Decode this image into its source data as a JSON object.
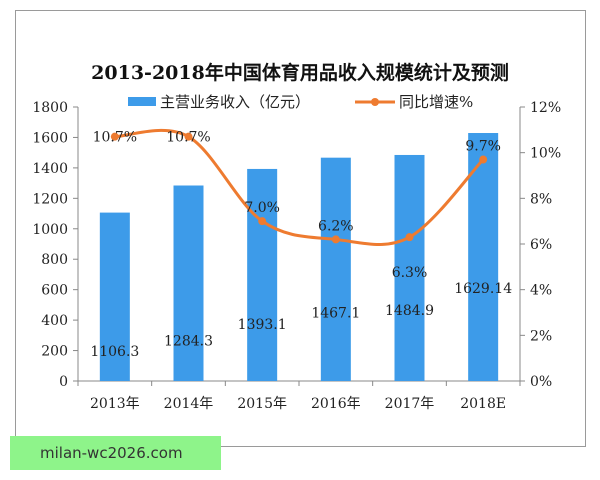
{
  "watermark": "milan-wc2026.com",
  "chart_data": {
    "type": "bar",
    "title": "2013-2018年中国体育用品收入规模统计及预测",
    "categories": [
      "2013年",
      "2014年",
      "2015年",
      "2016年",
      "2017年",
      "2018E"
    ],
    "series": [
      {
        "name": "主营业务收入（亿元）",
        "type": "bar",
        "axis": "left",
        "color": "#3d9be9",
        "values": [
          1106.3,
          1284.3,
          1393.1,
          1467.1,
          1484.9,
          1629.14
        ],
        "labels": [
          "1106.3",
          "1284.3",
          "1393.1",
          "1467.1",
          "1484.9",
          "1629.14"
        ]
      },
      {
        "name": "同比增速%",
        "type": "line",
        "axis": "right",
        "color": "#ee7b30",
        "values": [
          10.7,
          10.7,
          7.0,
          6.2,
          6.3,
          9.7
        ],
        "labels": [
          "10.7%",
          "10.7%",
          "7.0%",
          "6.2%",
          "6.3%",
          "9.7%"
        ]
      }
    ],
    "y_left": {
      "range": [
        0,
        1800
      ],
      "ticks": [
        "0",
        "200",
        "400",
        "600",
        "800",
        "1000",
        "1200",
        "1400",
        "1600",
        "1800"
      ]
    },
    "y_right": {
      "range": [
        0,
        12
      ],
      "ticks": [
        "0%",
        "2%",
        "4%",
        "6%",
        "8%",
        "10%",
        "12%"
      ]
    },
    "grid": false,
    "legend": "top"
  }
}
